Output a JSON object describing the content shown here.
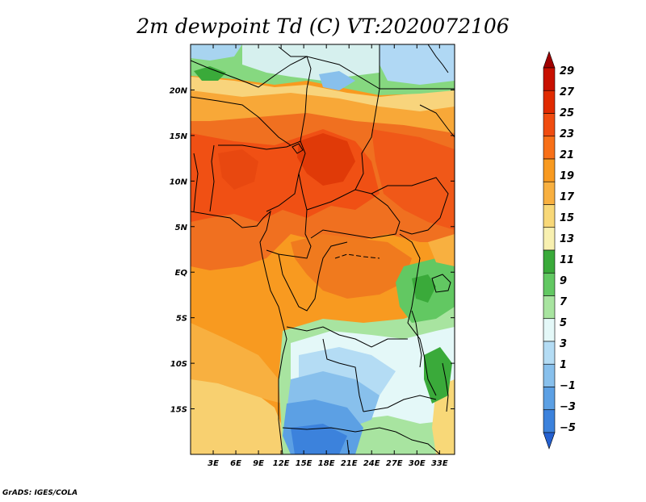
{
  "title": "2m dewpoint Td (C) VT:2020072106",
  "credit": "GrADS: IGES/COLA",
  "map": {
    "lon_range": [
      0,
      35
    ],
    "lat_range": [
      -20,
      25
    ],
    "lat_ticks": [
      {
        "value": 20,
        "label": "20N"
      },
      {
        "value": 15,
        "label": "15N"
      },
      {
        "value": 10,
        "label": "10N"
      },
      {
        "value": 5,
        "label": "5N"
      },
      {
        "value": 0,
        "label": "EQ"
      },
      {
        "value": -5,
        "label": "5S"
      },
      {
        "value": -10,
        "label": "10S"
      },
      {
        "value": -15,
        "label": "15S"
      }
    ],
    "lon_ticks": [
      {
        "value": 3,
        "label": "3E"
      },
      {
        "value": 6,
        "label": "6E"
      },
      {
        "value": 9,
        "label": "9E"
      },
      {
        "value": 12,
        "label": "12E"
      },
      {
        "value": 15,
        "label": "15E"
      },
      {
        "value": 18,
        "label": "18E"
      },
      {
        "value": 21,
        "label": "21E"
      },
      {
        "value": 24,
        "label": "24E"
      },
      {
        "value": 27,
        "label": "27E"
      },
      {
        "value": 30,
        "label": "30E"
      },
      {
        "value": 33,
        "label": "33E"
      }
    ]
  },
  "colorbar": {
    "levels": [
      {
        "label": "29",
        "color": "#a00000"
      },
      {
        "label": "27",
        "color": "#c81000"
      },
      {
        "label": "25",
        "color": "#e02a00"
      },
      {
        "label": "23",
        "color": "#f04c10"
      },
      {
        "label": "21",
        "color": "#f87018"
      },
      {
        "label": "19",
        "color": "#f89a20"
      },
      {
        "label": "17",
        "color": "#f8b040"
      },
      {
        "label": "15",
        "color": "#f8d878"
      },
      {
        "label": "13",
        "color": "#f8f0b0"
      },
      {
        "label": "11",
        "color": "#3aaa3a"
      },
      {
        "label": "9",
        "color": "#62c862"
      },
      {
        "label": "7",
        "color": "#a8e4a0"
      },
      {
        "label": "5",
        "color": "#e4f8f8"
      },
      {
        "label": "3",
        "color": "#b4dcf4"
      },
      {
        "label": "1",
        "color": "#88c0ec"
      },
      {
        "label": "−1",
        "color": "#5ca0e4"
      },
      {
        "label": "−3",
        "color": "#3c82dc"
      },
      {
        "label": "−5",
        "color": "#2460d0"
      }
    ]
  }
}
